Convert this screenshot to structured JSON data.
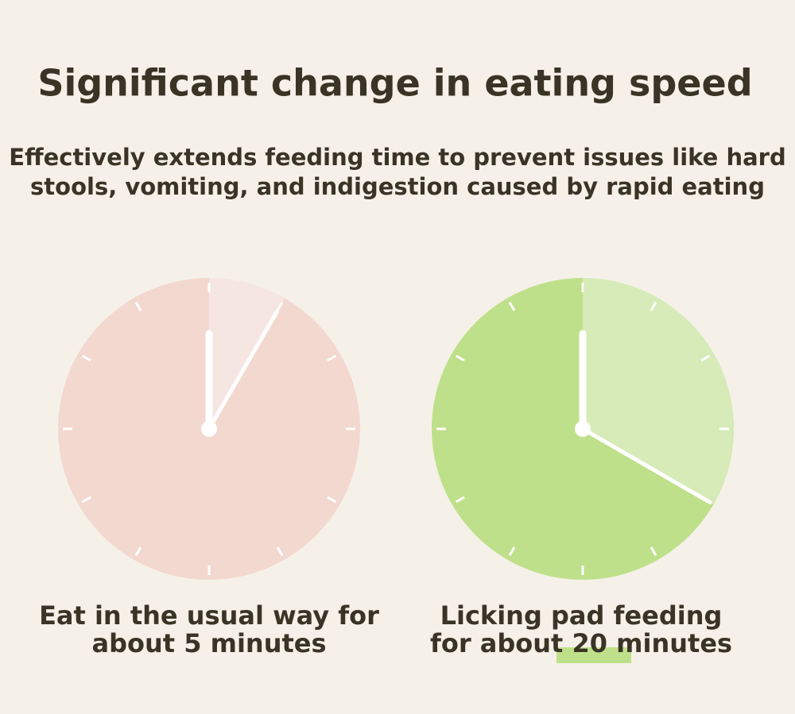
{
  "title": "Significant change in eating speed",
  "subtitle": [
    "Effectively extends feeding time to prevent issues like hard",
    "stools, vomiting, and indigestion caused by rapid eating"
  ],
  "panels": [
    {
      "caption": [
        "Eat in the usual way for",
        "about 5 minutes"
      ]
    },
    {
      "caption": [
        "Licking pad feeding",
        "for about 20 minutes"
      ]
    }
  ]
}
